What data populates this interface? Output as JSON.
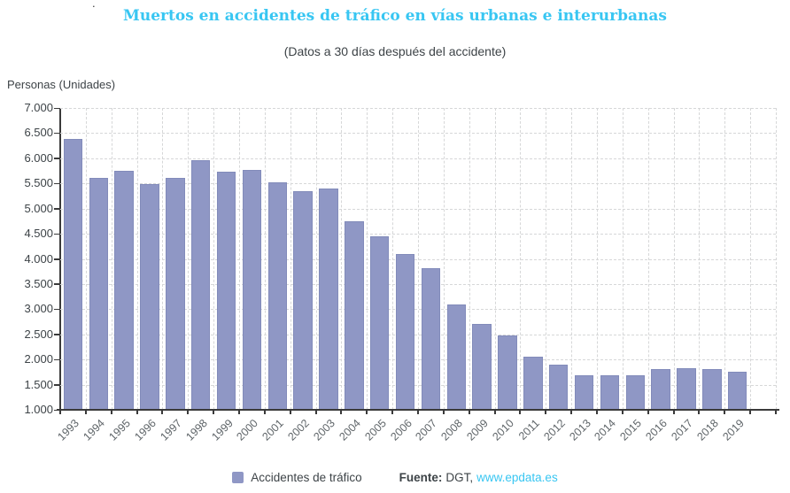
{
  "stray_mark": ".",
  "header": {
    "title": "Muertos en accidentes de tráfico en vías urbanas e interurbanas",
    "subtitle": "(Datos a 30 días después del accidente)"
  },
  "legend": {
    "series_label": "Accidentes de tráfico",
    "source_label": "Fuente:",
    "source_agency": "DGT,",
    "source_link": "www.epdata.es"
  },
  "colors": {
    "title": "#38c6f2",
    "bar": "#8f97c5",
    "bar_border": "#828bba",
    "link": "#38c6f2",
    "text_dark": "#3d4347",
    "text_gray": "#5f6569",
    "gridline": "#d6d7d8",
    "axis": "#3a3a3a"
  },
  "chart_data": {
    "type": "bar",
    "title": "Muertos en accidentes de tráfico en vías urbanas e interurbanas",
    "subtitle": "(Datos a 30 días después del accidente)",
    "xlabel": "",
    "ylabel": "Personas (Unidades)",
    "categories": [
      "1993",
      "1994",
      "1995",
      "1996",
      "1997",
      "1998",
      "1999",
      "2000",
      "2001",
      "2002",
      "2003",
      "2004",
      "2005",
      "2006",
      "2007",
      "2008",
      "2009",
      "2010",
      "2011",
      "2012",
      "2013",
      "2014",
      "2015",
      "2016",
      "2017",
      "2018",
      "2019"
    ],
    "series": [
      {
        "name": "Accidentes de tráfico",
        "values": [
          6378,
          5615,
          5751,
          5483,
          5604,
          5957,
          5738,
          5776,
          5517,
          5347,
          5399,
          4741,
          4442,
          4104,
          3823,
          3100,
          2714,
          2478,
          2060,
          1903,
          1680,
          1688,
          1689,
          1810,
          1830,
          1806,
          1755
        ]
      }
    ],
    "ylim": [
      1000,
      7000
    ],
    "ytick_step": 500,
    "ytick_labels": [
      "1.000",
      "1.500",
      "2.000",
      "2.500",
      "3.000",
      "3.500",
      "4.000",
      "4.500",
      "5.000",
      "5.500",
      "6.000",
      "6.500",
      "7.000"
    ],
    "grid": true,
    "legend_position": "bottom",
    "source": "Fuente: DGT, www.epdata.es"
  }
}
